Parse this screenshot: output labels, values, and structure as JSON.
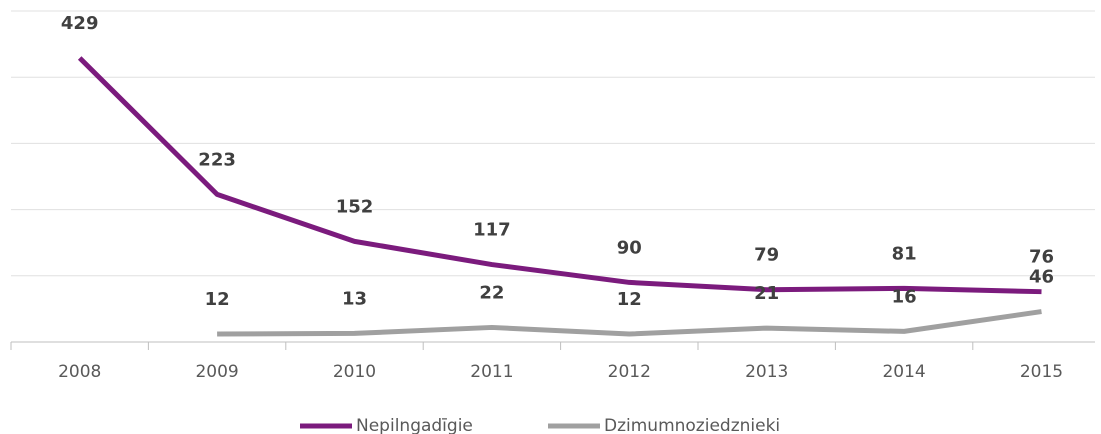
{
  "chart_data": {
    "type": "line",
    "categories": [
      "2008",
      "2009",
      "2010",
      "2011",
      "2012",
      "2013",
      "2014",
      "2015"
    ],
    "series": [
      {
        "name": "Nepilngadīgie",
        "color": "#7b1b7d",
        "values": [
          429,
          223,
          152,
          117,
          90,
          79,
          81,
          76
        ]
      },
      {
        "name": "Dzimumnoziedznieki",
        "color": "#a0a0a0",
        "values": [
          null,
          12,
          13,
          22,
          12,
          21,
          16,
          46
        ]
      }
    ],
    "ylim": [
      0,
      500
    ],
    "yticks": [
      0,
      100,
      200,
      300,
      400,
      500
    ],
    "grid": true
  }
}
